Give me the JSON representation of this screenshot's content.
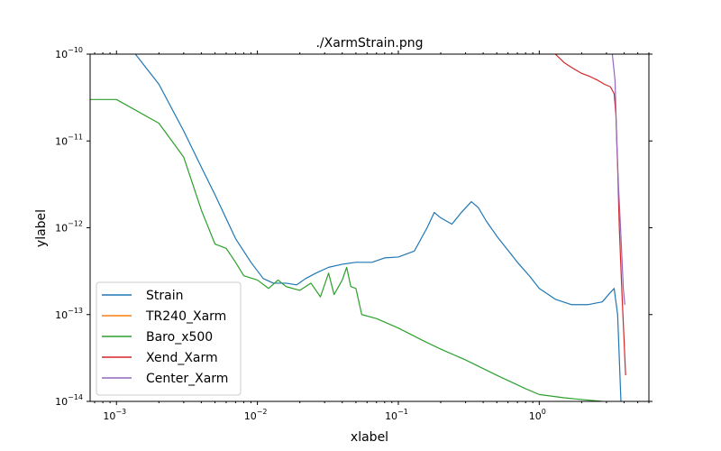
{
  "chart_data": {
    "type": "line",
    "title": "./XarmStrain.png",
    "xlabel": "xlabel",
    "ylabel": "ylabel",
    "xscale": "log",
    "yscale": "log",
    "xlim": [
      0.00065,
      6.0
    ],
    "ylim": [
      1e-14,
      1e-10
    ],
    "grid": false,
    "legend_position": "lower-left",
    "x_ticks": [
      {
        "base": "10",
        "exp": "−3",
        "value": 0.001
      },
      {
        "base": "10",
        "exp": "−2",
        "value": 0.01
      },
      {
        "base": "10",
        "exp": "−1",
        "value": 0.1
      },
      {
        "base": "10",
        "exp": "0",
        "value": 1
      }
    ],
    "y_ticks": [
      {
        "base": "10",
        "exp": "−10",
        "value": 1e-10
      },
      {
        "base": "10",
        "exp": "−11",
        "value": 1e-11
      },
      {
        "base": "10",
        "exp": "−12",
        "value": 1e-12
      },
      {
        "base": "10",
        "exp": "−13",
        "value": 1e-13
      },
      {
        "base": "10",
        "exp": "−14",
        "value": 1e-14
      }
    ],
    "series": [
      {
        "name": "Strain",
        "color": "#1f77b4",
        "points": [
          [
            0.0012,
            1.3e-10
          ],
          [
            0.002,
            4.5e-11
          ],
          [
            0.003,
            1.3e-11
          ],
          [
            0.004,
            5e-12
          ],
          [
            0.005,
            2.4e-12
          ],
          [
            0.007,
            7.5e-13
          ],
          [
            0.009,
            4e-13
          ],
          [
            0.011,
            2.6e-13
          ],
          [
            0.013,
            2.3e-13
          ],
          [
            0.016,
            2.3e-13
          ],
          [
            0.019,
            2.2e-13
          ],
          [
            0.022,
            2.6e-13
          ],
          [
            0.026,
            3e-13
          ],
          [
            0.032,
            3.5e-13
          ],
          [
            0.04,
            3.8e-13
          ],
          [
            0.05,
            4e-13
          ],
          [
            0.065,
            4e-13
          ],
          [
            0.08,
            4.5e-13
          ],
          [
            0.1,
            4.6e-13
          ],
          [
            0.13,
            5.4e-13
          ],
          [
            0.16,
            1e-12
          ],
          [
            0.18,
            1.5e-12
          ],
          [
            0.2,
            1.3e-12
          ],
          [
            0.24,
            1.1e-12
          ],
          [
            0.28,
            1.5e-12
          ],
          [
            0.33,
            2e-12
          ],
          [
            0.37,
            1.7e-12
          ],
          [
            0.42,
            1.2e-12
          ],
          [
            0.5,
            8e-13
          ],
          [
            0.6,
            5.5e-13
          ],
          [
            0.7,
            4e-13
          ],
          [
            0.85,
            2.8e-13
          ],
          [
            1.0,
            2e-13
          ],
          [
            1.3,
            1.5e-13
          ],
          [
            1.7,
            1.3e-13
          ],
          [
            2.2,
            1.3e-13
          ],
          [
            2.8,
            1.4e-13
          ],
          [
            3.2,
            1.8e-13
          ],
          [
            3.4,
            2e-13
          ],
          [
            3.6,
            1e-13
          ],
          [
            3.8,
            1e-14
          ]
        ]
      },
      {
        "name": "TR240_Xarm",
        "color": "#ff7f0e",
        "points": []
      },
      {
        "name": "Baro_x500",
        "color": "#2ca02c",
        "points": [
          [
            0.00065,
            3e-11
          ],
          [
            0.001,
            3e-11
          ],
          [
            0.002,
            1.6e-11
          ],
          [
            0.003,
            6.5e-12
          ],
          [
            0.004,
            1.6e-12
          ],
          [
            0.005,
            6.5e-13
          ],
          [
            0.006,
            5.8e-13
          ],
          [
            0.007,
            4e-13
          ],
          [
            0.008,
            2.8e-13
          ],
          [
            0.01,
            2.5e-13
          ],
          [
            0.012,
            2e-13
          ],
          [
            0.014,
            2.5e-13
          ],
          [
            0.016,
            2.1e-13
          ],
          [
            0.02,
            1.9e-13
          ],
          [
            0.024,
            2.3e-13
          ],
          [
            0.028,
            1.6e-13
          ],
          [
            0.032,
            3e-13
          ],
          [
            0.035,
            1.7e-13
          ],
          [
            0.04,
            2.5e-13
          ],
          [
            0.043,
            3.5e-13
          ],
          [
            0.046,
            2.1e-13
          ],
          [
            0.05,
            2e-13
          ],
          [
            0.055,
            1e-13
          ],
          [
            0.07,
            9e-14
          ],
          [
            0.1,
            7e-14
          ],
          [
            0.15,
            5e-14
          ],
          [
            0.2,
            4e-14
          ],
          [
            0.3,
            3e-14
          ],
          [
            0.5,
            2e-14
          ],
          [
            0.8,
            1.4e-14
          ],
          [
            1.0,
            1.2e-14
          ],
          [
            1.5,
            1.1e-14
          ],
          [
            2.0,
            1.05e-14
          ],
          [
            2.8,
            1e-14
          ]
        ]
      },
      {
        "name": "Xend_Xarm",
        "color": "#d62728",
        "points": [
          [
            1.3,
            1e-10
          ],
          [
            1.5,
            8e-11
          ],
          [
            1.7,
            7e-11
          ],
          [
            2.0,
            6e-11
          ],
          [
            2.3,
            5.5e-11
          ],
          [
            2.6,
            5e-11
          ],
          [
            2.9,
            4.5e-11
          ],
          [
            3.2,
            4.2e-11
          ],
          [
            3.4,
            3.5e-11
          ],
          [
            3.5,
            2e-11
          ],
          [
            3.6,
            5e-12
          ],
          [
            3.7,
            1e-12
          ],
          [
            3.85,
            2e-13
          ],
          [
            4.0,
            5e-14
          ],
          [
            4.1,
            2e-14
          ]
        ]
      },
      {
        "name": "Center_Xarm",
        "color": "#9467bd",
        "points": [
          [
            3.3,
            1e-10
          ],
          [
            3.45,
            5e-11
          ],
          [
            3.55,
            1e-11
          ],
          [
            3.65,
            3e-12
          ],
          [
            3.8,
            8e-13
          ],
          [
            3.95,
            2e-13
          ],
          [
            4.05,
            1.3e-13
          ]
        ]
      }
    ]
  }
}
